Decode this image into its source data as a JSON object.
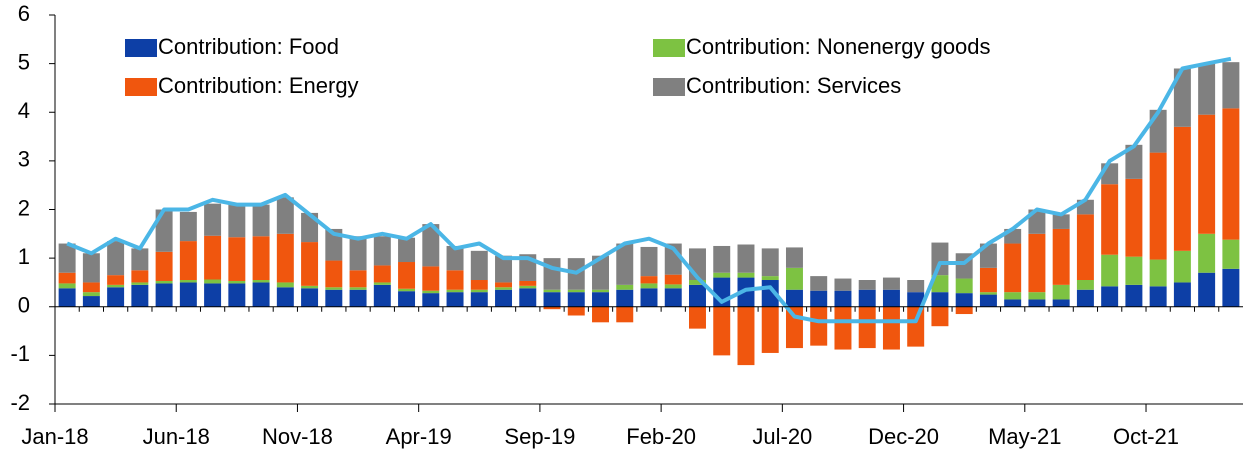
{
  "chart_data": {
    "type": "stacked_bar_line",
    "categories": [
      "Jan-18",
      null,
      null,
      null,
      null,
      "Jun-18",
      null,
      null,
      null,
      null,
      "Nov-18",
      null,
      null,
      null,
      null,
      "Apr-19",
      null,
      null,
      null,
      null,
      "Sep-19",
      null,
      null,
      null,
      null,
      "Feb-20",
      null,
      null,
      null,
      null,
      "Jul-20",
      null,
      null,
      null,
      null,
      "Dec-20",
      null,
      null,
      null,
      null,
      "May-21",
      null,
      null,
      null,
      null,
      "Oct-21",
      null,
      null,
      null
    ],
    "series": [
      {
        "name": "Contribution: Food",
        "color": "#0d3fa6",
        "values": [
          0.38,
          0.22,
          0.4,
          0.45,
          0.48,
          0.5,
          0.48,
          0.48,
          0.5,
          0.4,
          0.38,
          0.35,
          0.35,
          0.45,
          0.32,
          0.28,
          0.3,
          0.3,
          0.35,
          0.38,
          0.3,
          0.3,
          0.3,
          0.35,
          0.38,
          0.38,
          0.45,
          0.6,
          0.6,
          0.55,
          0.35,
          0.33,
          0.33,
          0.35,
          0.35,
          0.3,
          0.3,
          0.28,
          0.25,
          0.15,
          0.15,
          0.15,
          0.35,
          0.42,
          0.45,
          0.42,
          0.5,
          0.7,
          0.78
        ]
      },
      {
        "name": "Contribution: Nonenergy goods",
        "color": "#7dc242",
        "values": [
          0.1,
          0.08,
          0.05,
          0.05,
          0.05,
          0.05,
          0.08,
          0.05,
          0.05,
          0.1,
          0.05,
          0.05,
          0.05,
          0.05,
          0.05,
          0.05,
          0.05,
          0.05,
          0.05,
          0.05,
          0.05,
          0.05,
          0.05,
          0.1,
          0.1,
          0.08,
          0.1,
          0.1,
          0.1,
          0.08,
          0.45,
          0,
          0,
          0,
          0,
          0,
          0.35,
          0.3,
          0.05,
          0.15,
          0.15,
          0.3,
          0.2,
          0.65,
          0.58,
          0.55,
          0.65,
          0.8,
          0.6
        ]
      },
      {
        "name": "Contribution: Energy",
        "color": "#f0560e",
        "values": [
          0.22,
          0.2,
          0.2,
          0.25,
          0.6,
          0.8,
          0.9,
          0.9,
          0.9,
          1.0,
          0.9,
          0.55,
          0.35,
          0.35,
          0.55,
          0.5,
          0.4,
          0.2,
          0.1,
          0.1,
          -0.05,
          -0.18,
          -0.32,
          -0.32,
          0.15,
          0.2,
          -0.45,
          -1.0,
          -1.2,
          -0.95,
          -0.85,
          -0.8,
          -0.88,
          -0.85,
          -0.88,
          -0.82,
          -0.4,
          -0.15,
          0.5,
          1.0,
          1.2,
          1.15,
          1.35,
          1.45,
          1.6,
          2.2,
          2.55,
          2.45,
          2.7
        ]
      },
      {
        "name": "Contribution: Services",
        "color": "#808080",
        "values": [
          0.6,
          0.6,
          0.7,
          0.45,
          0.87,
          0.6,
          0.66,
          0.67,
          0.65,
          0.75,
          0.6,
          0.65,
          0.7,
          0.6,
          0.5,
          0.87,
          0.5,
          0.6,
          0.55,
          0.55,
          0.65,
          0.65,
          0.7,
          0.85,
          0.6,
          0.64,
          0.65,
          0.55,
          0.58,
          0.57,
          0.42,
          0.3,
          0.25,
          0.2,
          0.25,
          0.25,
          0.67,
          0.52,
          0.5,
          0.3,
          0.5,
          0.3,
          0.3,
          0.43,
          0.7,
          0.88,
          1.2,
          1.05,
          0.95
        ]
      }
    ],
    "line": {
      "color": "#4bb6e6",
      "values": [
        1.3,
        1.1,
        1.4,
        1.2,
        2.0,
        2.0,
        2.2,
        2.1,
        2.1,
        2.3,
        1.9,
        1.5,
        1.4,
        1.5,
        1.4,
        1.7,
        1.2,
        1.3,
        1.0,
        1.0,
        0.8,
        0.7,
        1.0,
        1.3,
        1.4,
        1.2,
        0.6,
        0.1,
        0.35,
        0.4,
        -0.2,
        -0.3,
        -0.3,
        -0.3,
        -0.3,
        -0.3,
        0.9,
        0.9,
        1.3,
        1.6,
        2.0,
        1.9,
        2.2,
        3.0,
        3.3,
        4.0,
        4.9,
        5.0,
        5.1
      ]
    },
    "ylim": [
      -2,
      6
    ],
    "yticks": [
      -2,
      -1,
      0,
      1,
      2,
      3,
      4,
      5,
      6
    ]
  }
}
